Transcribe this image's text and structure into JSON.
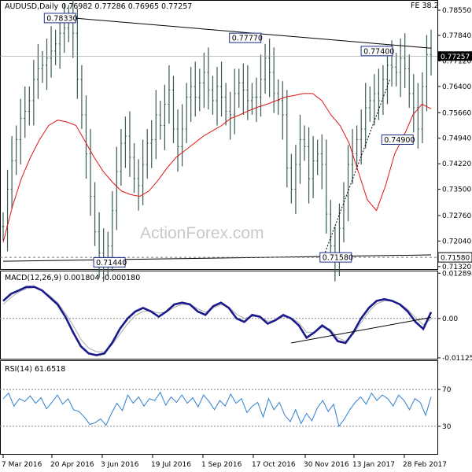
{
  "chart_data": {
    "type": "line",
    "price_panel": {
      "title": "AUDUSD,Daily",
      "ohlc_text": "0.76982 0.77286 0.76965 0.77257",
      "corner_label": "FE 38.2",
      "watermark": "ActionForex.com",
      "ylim": [
        0.7125,
        0.7875
      ],
      "y_ticks": [
        "0.78550",
        "0.77840",
        "0.77120",
        "0.76400",
        "0.75660",
        "0.74940",
        "0.74220",
        "0.73500",
        "0.72760",
        "0.72040",
        "0.71320"
      ],
      "current_price": "0.77257",
      "support_level": "0.71580",
      "close": [
        0.7245,
        0.735,
        0.743,
        0.749,
        0.755,
        0.757,
        0.76,
        0.766,
        0.769,
        0.77,
        0.772,
        0.774,
        0.776,
        0.779,
        0.7805,
        0.783,
        0.779,
        0.766,
        0.756,
        0.745,
        0.733,
        0.723,
        0.717,
        0.7144,
        0.719,
        0.729,
        0.74,
        0.748,
        0.75,
        0.744,
        0.738,
        0.736,
        0.742,
        0.748,
        0.749,
        0.756,
        0.753,
        0.759,
        0.763,
        0.752,
        0.747,
        0.752,
        0.761,
        0.764,
        0.761,
        0.765,
        0.768,
        0.763,
        0.76,
        0.764,
        0.761,
        0.757,
        0.756,
        0.762,
        0.765,
        0.763,
        0.76,
        0.761,
        0.761,
        0.766,
        0.772,
        0.768,
        0.762,
        0.76,
        0.756,
        0.741,
        0.735,
        0.742,
        0.749,
        0.747,
        0.738,
        0.743,
        0.745,
        0.742,
        0.728,
        0.719,
        0.716,
        0.724,
        0.733,
        0.742,
        0.745,
        0.749,
        0.752,
        0.758,
        0.76,
        0.762,
        0.76,
        0.766,
        0.77,
        0.7695,
        0.768,
        0.772,
        0.769,
        0.762,
        0.758,
        0.752,
        0.764,
        0.773,
        0.7726
      ],
      "sma": [
        0.72,
        0.73,
        0.738,
        0.744,
        0.749,
        0.753,
        0.7545,
        0.754,
        0.753,
        0.7485,
        0.744,
        0.74,
        0.737,
        0.7345,
        0.7335,
        0.733,
        0.7345,
        0.7375,
        0.741,
        0.744,
        0.746,
        0.748,
        0.75,
        0.7515,
        0.753,
        0.755,
        0.756,
        0.7572,
        0.7582,
        0.759,
        0.76,
        0.761,
        0.7615,
        0.762,
        0.762,
        0.76,
        0.756,
        0.753,
        0.748,
        0.74,
        0.732,
        0.729,
        0.736,
        0.745,
        0.75,
        0.756,
        0.759,
        0.7577
      ],
      "labels": [
        {
          "text": "0.78330",
          "x": 10,
          "y": 0.7833
        },
        {
          "text": "0.77770",
          "x": 55,
          "y": 0.7777
        },
        {
          "text": "0.77400",
          "x": 87,
          "y": 0.774
        },
        {
          "text": "0.74900",
          "x": 92,
          "y": 0.749
        },
        {
          "text": "0.71440",
          "x": 22,
          "y": 0.7144
        },
        {
          "text": "0.71580",
          "x": 77,
          "y": 0.7158
        }
      ],
      "trendline_upper": {
        "x": [
          12,
          104
        ],
        "y": [
          0.7838,
          0.7748
        ]
      },
      "trendline_lower": {
        "x": [
          0,
          104
        ],
        "y": [
          0.7147,
          0.7165
        ]
      },
      "trendline_dashed": {
        "x": [
          78,
          94
        ],
        "y": [
          0.7164,
          0.766
        ]
      }
    },
    "macd_panel": {
      "title": "MACD(12,26,9) 0.001804 -0.000180",
      "ylim": [
        -0.0115,
        0.0132
      ],
      "y_ticks": [
        "0.012894",
        "0.00",
        "-0.011253"
      ],
      "macd": [
        0.005,
        0.007,
        0.008,
        0.009,
        0.009,
        0.008,
        0.006,
        0.004,
        0.0005,
        -0.004,
        -0.008,
        -0.01,
        -0.0105,
        -0.01,
        -0.007,
        -0.003,
        0.0,
        0.002,
        0.003,
        0.002,
        0.0005,
        0.002,
        0.004,
        0.0045,
        0.004,
        0.002,
        0.001,
        0.0035,
        0.0045,
        0.003,
        0.0,
        -0.001,
        0.001,
        0.0005,
        -0.0015,
        -0.0005,
        0.001,
        0.0,
        -0.002,
        -0.0055,
        -0.004,
        -0.002,
        -0.0035,
        -0.0065,
        -0.007,
        -0.004,
        0.0,
        0.003,
        0.005,
        0.0055,
        0.005,
        0.004,
        0.002,
        -0.001,
        -0.003,
        0.0018
      ],
      "signal": [
        0.004,
        0.006,
        0.0075,
        0.0085,
        0.0088,
        0.008,
        0.0065,
        0.0045,
        0.0015,
        -0.002,
        -0.006,
        -0.0085,
        -0.0095,
        -0.0095,
        -0.0075,
        -0.0045,
        -0.0015,
        0.0008,
        0.002,
        0.0022,
        0.0015,
        0.0018,
        0.0032,
        0.004,
        0.004,
        0.0028,
        0.0018,
        0.003,
        0.004,
        0.0032,
        0.0012,
        0.0,
        0.0006,
        0.0005,
        -0.0008,
        -0.0006,
        0.0005,
        0.0002,
        -0.0012,
        -0.004,
        -0.004,
        -0.0025,
        -0.003,
        -0.0055,
        -0.0065,
        -0.0045,
        -0.0012,
        0.002,
        0.0042,
        0.005,
        0.005,
        0.0042,
        0.0026,
        0.0002,
        -0.0018,
        -0.0002
      ],
      "trendline": {
        "x": [
          70,
          104
        ],
        "y": [
          -0.007,
          0.0003
        ]
      }
    },
    "rsi_panel": {
      "title": "RSI(14) 61.6518",
      "ylim": [
        0,
        100
      ],
      "y_ticks": [
        "70",
        "30"
      ],
      "levels": [
        70,
        30
      ],
      "rsi": [
        60,
        66,
        52,
        60,
        57,
        63,
        55,
        61,
        49,
        56,
        64,
        54,
        60,
        48,
        46,
        40,
        32,
        34,
        38,
        31,
        44,
        55,
        47,
        64,
        55,
        62,
        52,
        60,
        58,
        67,
        53,
        62,
        56,
        64,
        55,
        61,
        51,
        64,
        57,
        48,
        58,
        52,
        65,
        55,
        60,
        45,
        52,
        56,
        40,
        60,
        48,
        56,
        42,
        35,
        48,
        33,
        44,
        36,
        50,
        58,
        46,
        54,
        30,
        38,
        48,
        56,
        62,
        54,
        66,
        58,
        64,
        60,
        52,
        64,
        58,
        48,
        60,
        56,
        42,
        62
      ]
    },
    "x_ticks": [
      "7 Mar 2016",
      "20 Apr 2016",
      "3 Jun 2016",
      "19 Jul 2016",
      "1 Sep 2016",
      "17 Oct 2016",
      "30 Nov 2016",
      "13 Jan 2017",
      "28 Feb 2017"
    ]
  }
}
